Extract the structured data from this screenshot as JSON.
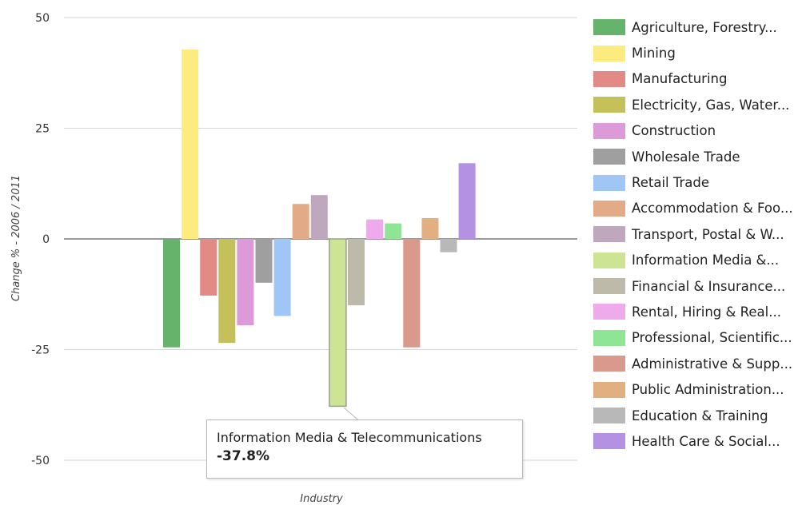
{
  "chart_data": {
    "type": "bar",
    "title": "",
    "xlabel": "Industry",
    "ylabel": "Change % - 2006 / 2011",
    "ylim": [
      -50,
      50
    ],
    "yticks": [
      50,
      25,
      0,
      -25,
      -50
    ],
    "yticks_labels": [
      "50",
      "25",
      "0",
      "-25",
      "-50"
    ],
    "grid": true,
    "legend_position": "right",
    "series": [
      {
        "name": "Agriculture, Forestry...",
        "value": -24.5,
        "color": "#66b36b"
      },
      {
        "name": "Mining",
        "value": 42.8,
        "color": "#fcec80"
      },
      {
        "name": "Manufacturing",
        "value": -12.8,
        "color": "#e28a85"
      },
      {
        "name": "Electricity, Gas, Water...",
        "value": -23.5,
        "color": "#c5c15a"
      },
      {
        "name": "Construction",
        "value": -19.5,
        "color": "#dd9ad8"
      },
      {
        "name": "Wholesale Trade",
        "value": -9.9,
        "color": "#9f9f9f"
      },
      {
        "name": "Retail Trade",
        "value": -17.4,
        "color": "#9fc6f5"
      },
      {
        "name": "Accommodation & Foo...",
        "value": 7.9,
        "color": "#e3aa88"
      },
      {
        "name": "Transport, Postal & W...",
        "value": 9.9,
        "color": "#bfa8be"
      },
      {
        "name": "Information Media &...",
        "value": -37.8,
        "color": "#cde495"
      },
      {
        "name": "Financial & Insurance...",
        "value": -15.0,
        "color": "#bdbaa9"
      },
      {
        "name": "Rental, Hiring & Real...",
        "value": 4.4,
        "color": "#eeaaea"
      },
      {
        "name": "Professional, Scientific...",
        "value": 3.5,
        "color": "#8ee594"
      },
      {
        "name": "Administrative & Supp...",
        "value": -24.5,
        "color": "#d99a8d"
      },
      {
        "name": "Public Administration...",
        "value": 4.7,
        "color": "#e2b080"
      },
      {
        "name": "Education & Training",
        "value": -3.0,
        "color": "#b8b8b8"
      },
      {
        "name": "Health Care & Social...",
        "value": 17.1,
        "color": "#b591e4"
      }
    ],
    "highlight_index": 9
  },
  "tooltip": {
    "name": "Information Media & Telecommunications",
    "value": "-37.8%"
  }
}
